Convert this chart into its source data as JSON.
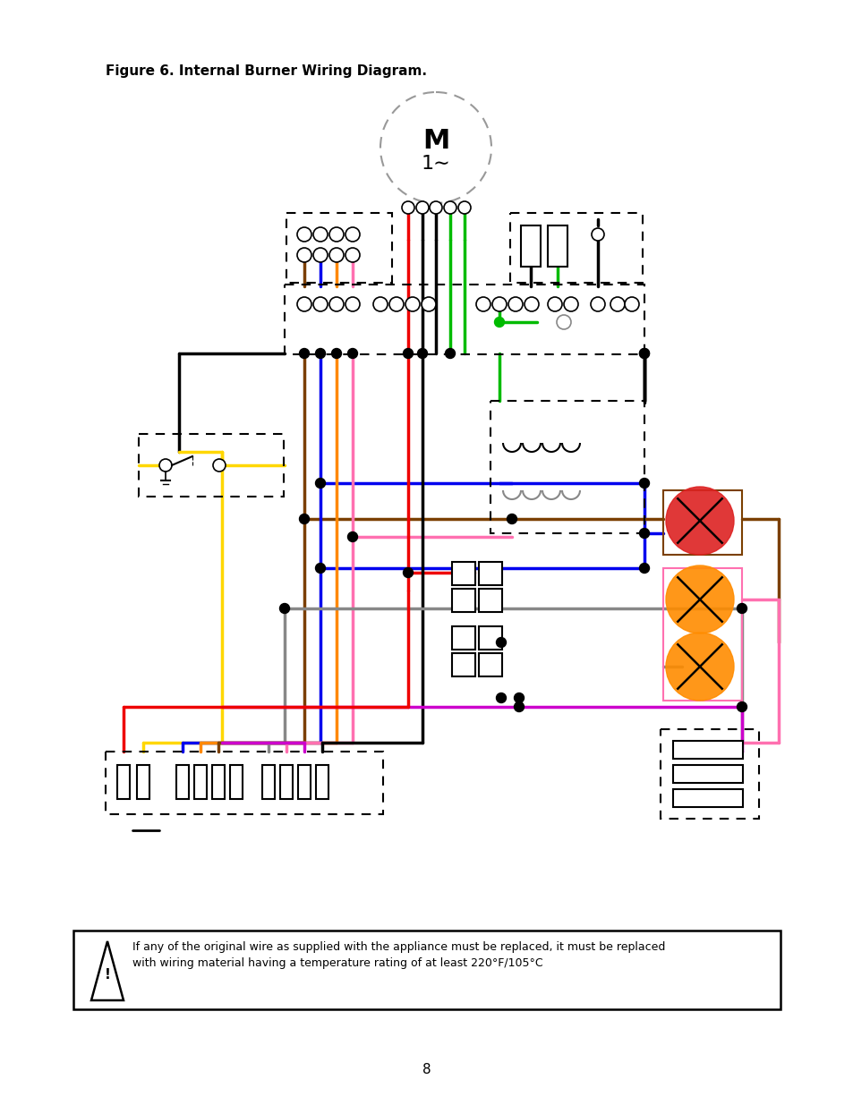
{
  "title": "Figure 6. Internal Burner Wiring Diagram.",
  "page_number": "8",
  "warning_text": "If any of the original wire as supplied with the appliance must be replaced, it must be replaced\nwith wiring material having a temperature rating of at least 220°F/105°C",
  "colors": {
    "red": "#EE0000",
    "black": "#000000",
    "green": "#00BB00",
    "blue": "#0000EE",
    "orange": "#FF8800",
    "pink": "#FF70B0",
    "yellow": "#FFD700",
    "brown": "#7B3F00",
    "gray": "#888888",
    "purple": "#CC00CC",
    "dark_green": "#007700",
    "lime": "#00CC00"
  }
}
